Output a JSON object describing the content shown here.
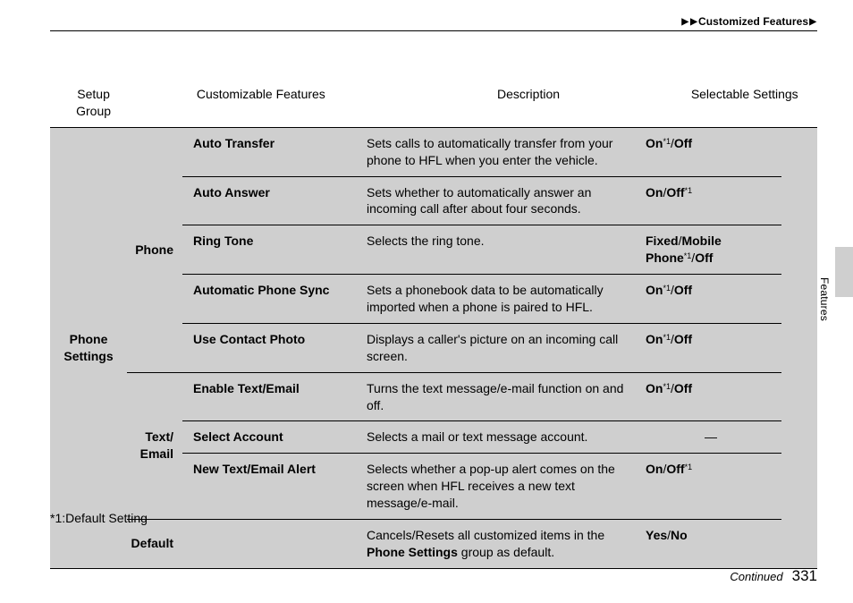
{
  "breadcrumb": {
    "triangle": "▶",
    "section": "Customized Features"
  },
  "headers": {
    "setup_group": "Setup\nGroup",
    "customizable_features": "Customizable Features",
    "description": "Description",
    "selectable_settings": "Selectable Settings"
  },
  "colors": {
    "grey_bg": "#cfcfcf",
    "rule": "#000000",
    "page_bg": "#ffffff"
  },
  "section": {
    "setup_group": "Phone Settings",
    "groups": [
      {
        "name": "Phone",
        "rows": [
          {
            "feature": "Auto Transfer",
            "description": "Sets calls to automatically transfer from your phone to HFL when you enter the vehicle.",
            "settings": {
              "html": "<b>On</b><span class='sup'>*1</span>/<b>Off</b>"
            }
          },
          {
            "feature": "Auto Answer",
            "description": "Sets whether to automatically answer an incoming call after about four seconds.",
            "settings": {
              "html": "<b>On</b>/<b>Off</b><span class='sup'>*1</span>"
            }
          },
          {
            "feature": "Ring Tone",
            "description": "Selects the ring tone.",
            "settings": {
              "html": "<b>Fixed</b>/<b>Mobile Phone</b><span class='sup'>*1</span>/<b>Off</b>"
            }
          },
          {
            "feature": "Automatic Phone Sync",
            "description": "Sets a phonebook data to be automatically imported when a phone is paired to HFL.",
            "settings": {
              "html": "<b>On</b><span class='sup'>*1</span>/<b>Off</b>"
            }
          },
          {
            "feature": "Use Contact Photo",
            "description": "Displays a caller's picture on an incoming call screen.",
            "settings": {
              "html": "<b>On</b><span class='sup'>*1</span>/<b>Off</b>"
            }
          }
        ]
      },
      {
        "name": "Text/ Email",
        "rows": [
          {
            "feature": "Enable Text/Email",
            "description": "Turns the text message/e-mail function on and off.",
            "settings": {
              "html": "<b>On</b><span class='sup'>*1</span>/<b>Off</b>"
            }
          },
          {
            "feature": "Select Account",
            "description": "Selects a mail or text message account.",
            "settings": {
              "html": "—",
              "center": true
            }
          },
          {
            "feature": "New Text/Email Alert",
            "description": "Selects whether a pop-up alert comes on the screen when HFL receives a new text message/e-mail.",
            "settings": {
              "html": "<b>On</b>/<b>Off</b><span class='sup'>*1</span>"
            }
          }
        ]
      },
      {
        "name": "Default",
        "rows": [
          {
            "feature": "",
            "description_html": "Cancels/Resets all customized items in the <b>Phone Settings</b> group as default.",
            "settings": {
              "html": "<b>Yes</b>/<b>No</b>"
            }
          }
        ]
      }
    ]
  },
  "footnote": "*1:Default Setting",
  "side_tab": "Features",
  "footer": {
    "continued": "Continued",
    "page": "331"
  }
}
